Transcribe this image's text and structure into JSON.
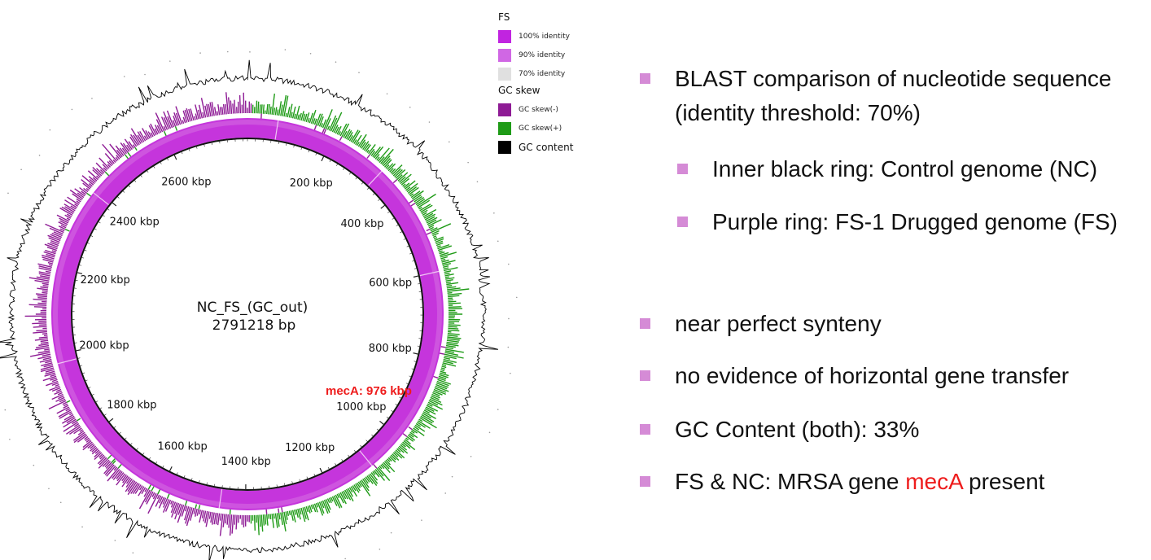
{
  "diagram": {
    "center_title": "NC_FS_(GC_out)",
    "center_subtitle": "2791218 bp",
    "genome_length_bp": 2791218,
    "tick_labels": [
      "200 kbp",
      "400 kbp",
      "600 kbp",
      "800 kbp",
      "1000 kbp",
      "1200 kbp",
      "1400 kbp",
      "1600 kbp",
      "1800 kbp",
      "2000 kbp",
      "2200 kbp",
      "2400 kbp",
      "2600 kbp"
    ],
    "annotation": {
      "label": "mecA: 976 kbp",
      "position_kbp": 976,
      "color": "#ee1c1c"
    },
    "colors": {
      "identity_ring": "#c535dc",
      "identity_ring_light": "#d56ee2",
      "skew_negative": "#8e1b95",
      "skew_positive": "#1f9b17",
      "gc_content": "#000000"
    }
  },
  "legend": {
    "fs_title": "FS",
    "fs_items": [
      {
        "label": "100% identity",
        "color": "#c124e0"
      },
      {
        "label": "90% identity",
        "color": "#d067e4"
      },
      {
        "label": "70% identity",
        "color": "#e0e0e0"
      }
    ],
    "gc_title": "GC skew",
    "gc_items": [
      {
        "label": "GC skew(-)",
        "color": "#8e1b95"
      },
      {
        "label": "GC skew(+)",
        "color": "#1f9b17"
      }
    ],
    "gc_content_label": "GC content",
    "gc_content_color": "#000000"
  },
  "bullets": {
    "b1_line1": "BLAST comparison of nucleotide sequence",
    "b1_line2": "(identity threshold: 70%)",
    "b1_sub1": "Inner black ring: Control genome (NC)",
    "b1_sub2": "Purple ring: FS-1 Drugged genome (FS)",
    "b2": "near perfect synteny",
    "b3": "no evidence of horizontal gene transfer",
    "b4": "GC Content (both): 33%",
    "b5_prefix": "FS & NC: MRSA gene ",
    "b5_gene": "mecA",
    "b5_suffix": " present",
    "bullet_color": "#d58bd6"
  }
}
